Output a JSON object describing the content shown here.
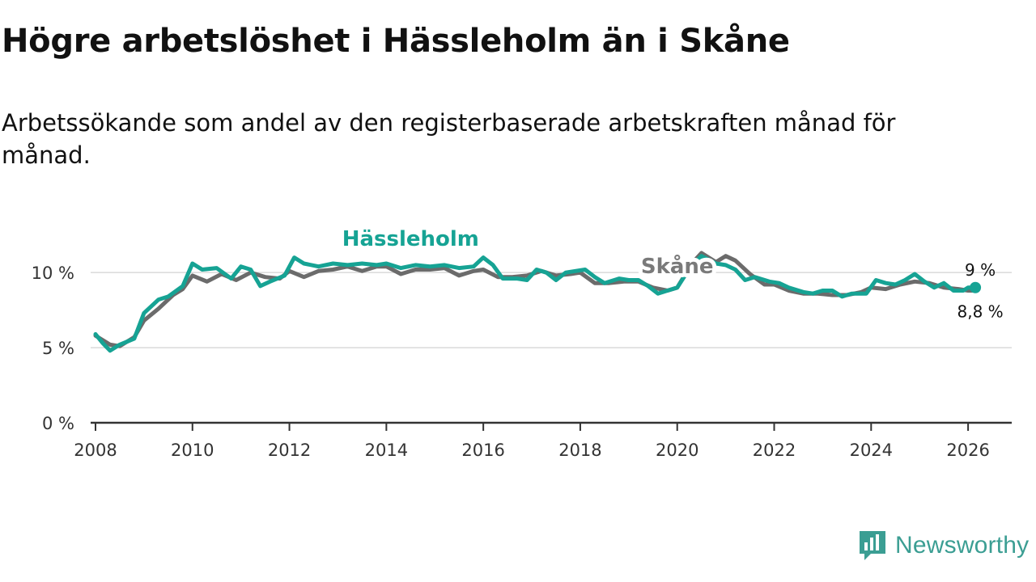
{
  "title": "Högre arbetslöshet i Hässleholm än i Skåne",
  "subtitle": "Arbetssökande som andel av den registerbaserade arbetskraften månad för månad.",
  "brand": {
    "name": "Newsworthy",
    "icon": "bar-chart-speech-bubble-icon",
    "color": "#3b9e93"
  },
  "chart_data": {
    "type": "line",
    "xlim": [
      2007.9,
      2026.9
    ],
    "ylim": [
      0,
      12
    ],
    "x_ticks": [
      {
        "value": 2008,
        "label": "2008"
      },
      {
        "value": 2010,
        "label": "2010"
      },
      {
        "value": 2012,
        "label": "2012"
      },
      {
        "value": 2014,
        "label": "2014"
      },
      {
        "value": 2016,
        "label": "2016"
      },
      {
        "value": 2018,
        "label": "2018"
      },
      {
        "value": 2020,
        "label": "2020"
      },
      {
        "value": 2022,
        "label": "2022"
      },
      {
        "value": 2024,
        "label": "2024"
      },
      {
        "value": 2026,
        "label": "2026"
      }
    ],
    "y_ticks": [
      {
        "value": 0,
        "label": "0 %"
      },
      {
        "value": 5,
        "label": "5 %"
      },
      {
        "value": 10,
        "label": "10 %"
      }
    ],
    "grid": true,
    "series": [
      {
        "name": "Skåne",
        "color": "#6b6b6b",
        "label_color": "#7a7a7a",
        "end_label": "8,8 %",
        "points": [
          [
            2008.0,
            5.8
          ],
          [
            2008.3,
            5.2
          ],
          [
            2008.5,
            5.1
          ],
          [
            2008.8,
            5.7
          ],
          [
            2009.0,
            6.8
          ],
          [
            2009.3,
            7.6
          ],
          [
            2009.6,
            8.5
          ],
          [
            2009.8,
            8.9
          ],
          [
            2010.0,
            9.8
          ],
          [
            2010.3,
            9.4
          ],
          [
            2010.6,
            9.9
          ],
          [
            2010.9,
            9.5
          ],
          [
            2011.2,
            10.0
          ],
          [
            2011.5,
            9.7
          ],
          [
            2011.8,
            9.6
          ],
          [
            2012.0,
            10.1
          ],
          [
            2012.3,
            9.7
          ],
          [
            2012.6,
            10.1
          ],
          [
            2012.9,
            10.2
          ],
          [
            2013.2,
            10.4
          ],
          [
            2013.5,
            10.1
          ],
          [
            2013.8,
            10.4
          ],
          [
            2014.0,
            10.4
          ],
          [
            2014.3,
            9.9
          ],
          [
            2014.6,
            10.2
          ],
          [
            2014.9,
            10.2
          ],
          [
            2015.2,
            10.3
          ],
          [
            2015.5,
            9.8
          ],
          [
            2015.8,
            10.1
          ],
          [
            2016.0,
            10.2
          ],
          [
            2016.3,
            9.7
          ],
          [
            2016.6,
            9.7
          ],
          [
            2016.9,
            9.8
          ],
          [
            2017.2,
            10.1
          ],
          [
            2017.5,
            9.8
          ],
          [
            2017.8,
            9.9
          ],
          [
            2018.0,
            10.0
          ],
          [
            2018.3,
            9.3
          ],
          [
            2018.6,
            9.3
          ],
          [
            2018.9,
            9.4
          ],
          [
            2019.2,
            9.4
          ],
          [
            2019.5,
            9.0
          ],
          [
            2019.8,
            8.8
          ],
          [
            2020.0,
            9.0
          ],
          [
            2020.3,
            10.6
          ],
          [
            2020.5,
            11.3
          ],
          [
            2020.8,
            10.7
          ],
          [
            2021.0,
            11.1
          ],
          [
            2021.2,
            10.8
          ],
          [
            2021.5,
            9.9
          ],
          [
            2021.8,
            9.2
          ],
          [
            2022.0,
            9.2
          ],
          [
            2022.3,
            8.8
          ],
          [
            2022.6,
            8.6
          ],
          [
            2022.9,
            8.6
          ],
          [
            2023.2,
            8.5
          ],
          [
            2023.5,
            8.5
          ],
          [
            2023.8,
            8.7
          ],
          [
            2024.0,
            9.0
          ],
          [
            2024.3,
            8.9
          ],
          [
            2024.6,
            9.2
          ],
          [
            2024.9,
            9.4
          ],
          [
            2025.2,
            9.3
          ],
          [
            2025.5,
            9.0
          ],
          [
            2025.8,
            8.9
          ],
          [
            2026.0,
            8.8
          ],
          [
            2026.15,
            8.8
          ]
        ]
      },
      {
        "name": "Hässleholm",
        "color": "#16a394",
        "label_color": "#16a394",
        "end_label": "9 %",
        "points": [
          [
            2008.0,
            5.9
          ],
          [
            2008.15,
            5.3
          ],
          [
            2008.3,
            4.8
          ],
          [
            2008.5,
            5.2
          ],
          [
            2008.8,
            5.6
          ],
          [
            2009.0,
            7.3
          ],
          [
            2009.3,
            8.2
          ],
          [
            2009.5,
            8.4
          ],
          [
            2009.8,
            9.1
          ],
          [
            2010.0,
            10.6
          ],
          [
            2010.2,
            10.2
          ],
          [
            2010.5,
            10.3
          ],
          [
            2010.8,
            9.6
          ],
          [
            2011.0,
            10.4
          ],
          [
            2011.2,
            10.2
          ],
          [
            2011.4,
            9.1
          ],
          [
            2011.6,
            9.4
          ],
          [
            2011.9,
            9.8
          ],
          [
            2012.1,
            11.0
          ],
          [
            2012.3,
            10.6
          ],
          [
            2012.6,
            10.4
          ],
          [
            2012.9,
            10.6
          ],
          [
            2013.2,
            10.5
          ],
          [
            2013.5,
            10.6
          ],
          [
            2013.8,
            10.5
          ],
          [
            2014.0,
            10.6
          ],
          [
            2014.3,
            10.3
          ],
          [
            2014.6,
            10.5
          ],
          [
            2014.9,
            10.4
          ],
          [
            2015.2,
            10.5
          ],
          [
            2015.5,
            10.3
          ],
          [
            2015.8,
            10.4
          ],
          [
            2016.0,
            11.0
          ],
          [
            2016.2,
            10.5
          ],
          [
            2016.4,
            9.6
          ],
          [
            2016.7,
            9.6
          ],
          [
            2016.9,
            9.5
          ],
          [
            2017.1,
            10.2
          ],
          [
            2017.3,
            10.0
          ],
          [
            2017.5,
            9.5
          ],
          [
            2017.7,
            10.0
          ],
          [
            2017.9,
            10.1
          ],
          [
            2018.1,
            10.2
          ],
          [
            2018.3,
            9.7
          ],
          [
            2018.5,
            9.3
          ],
          [
            2018.8,
            9.6
          ],
          [
            2019.0,
            9.5
          ],
          [
            2019.2,
            9.5
          ],
          [
            2019.4,
            9.1
          ],
          [
            2019.6,
            8.6
          ],
          [
            2019.8,
            8.8
          ],
          [
            2020.0,
            9.0
          ],
          [
            2020.3,
            10.5
          ],
          [
            2020.5,
            11.1
          ],
          [
            2020.8,
            10.6
          ],
          [
            2021.0,
            10.5
          ],
          [
            2021.2,
            10.2
          ],
          [
            2021.4,
            9.5
          ],
          [
            2021.6,
            9.7
          ],
          [
            2021.9,
            9.4
          ],
          [
            2022.1,
            9.3
          ],
          [
            2022.3,
            9.0
          ],
          [
            2022.6,
            8.7
          ],
          [
            2022.8,
            8.6
          ],
          [
            2023.0,
            8.8
          ],
          [
            2023.2,
            8.8
          ],
          [
            2023.4,
            8.4
          ],
          [
            2023.6,
            8.6
          ],
          [
            2023.9,
            8.6
          ],
          [
            2024.1,
            9.5
          ],
          [
            2024.3,
            9.3
          ],
          [
            2024.5,
            9.2
          ],
          [
            2024.7,
            9.5
          ],
          [
            2024.9,
            9.9
          ],
          [
            2025.1,
            9.4
          ],
          [
            2025.3,
            9.0
          ],
          [
            2025.5,
            9.3
          ],
          [
            2025.7,
            8.8
          ],
          [
            2025.9,
            8.8
          ],
          [
            2026.0,
            9.0
          ],
          [
            2026.15,
            9.0
          ]
        ]
      }
    ],
    "annotations": [
      {
        "text": "Hässleholm",
        "series": "Hässleholm"
      },
      {
        "text": "Skåne",
        "series": "Skåne"
      }
    ]
  }
}
